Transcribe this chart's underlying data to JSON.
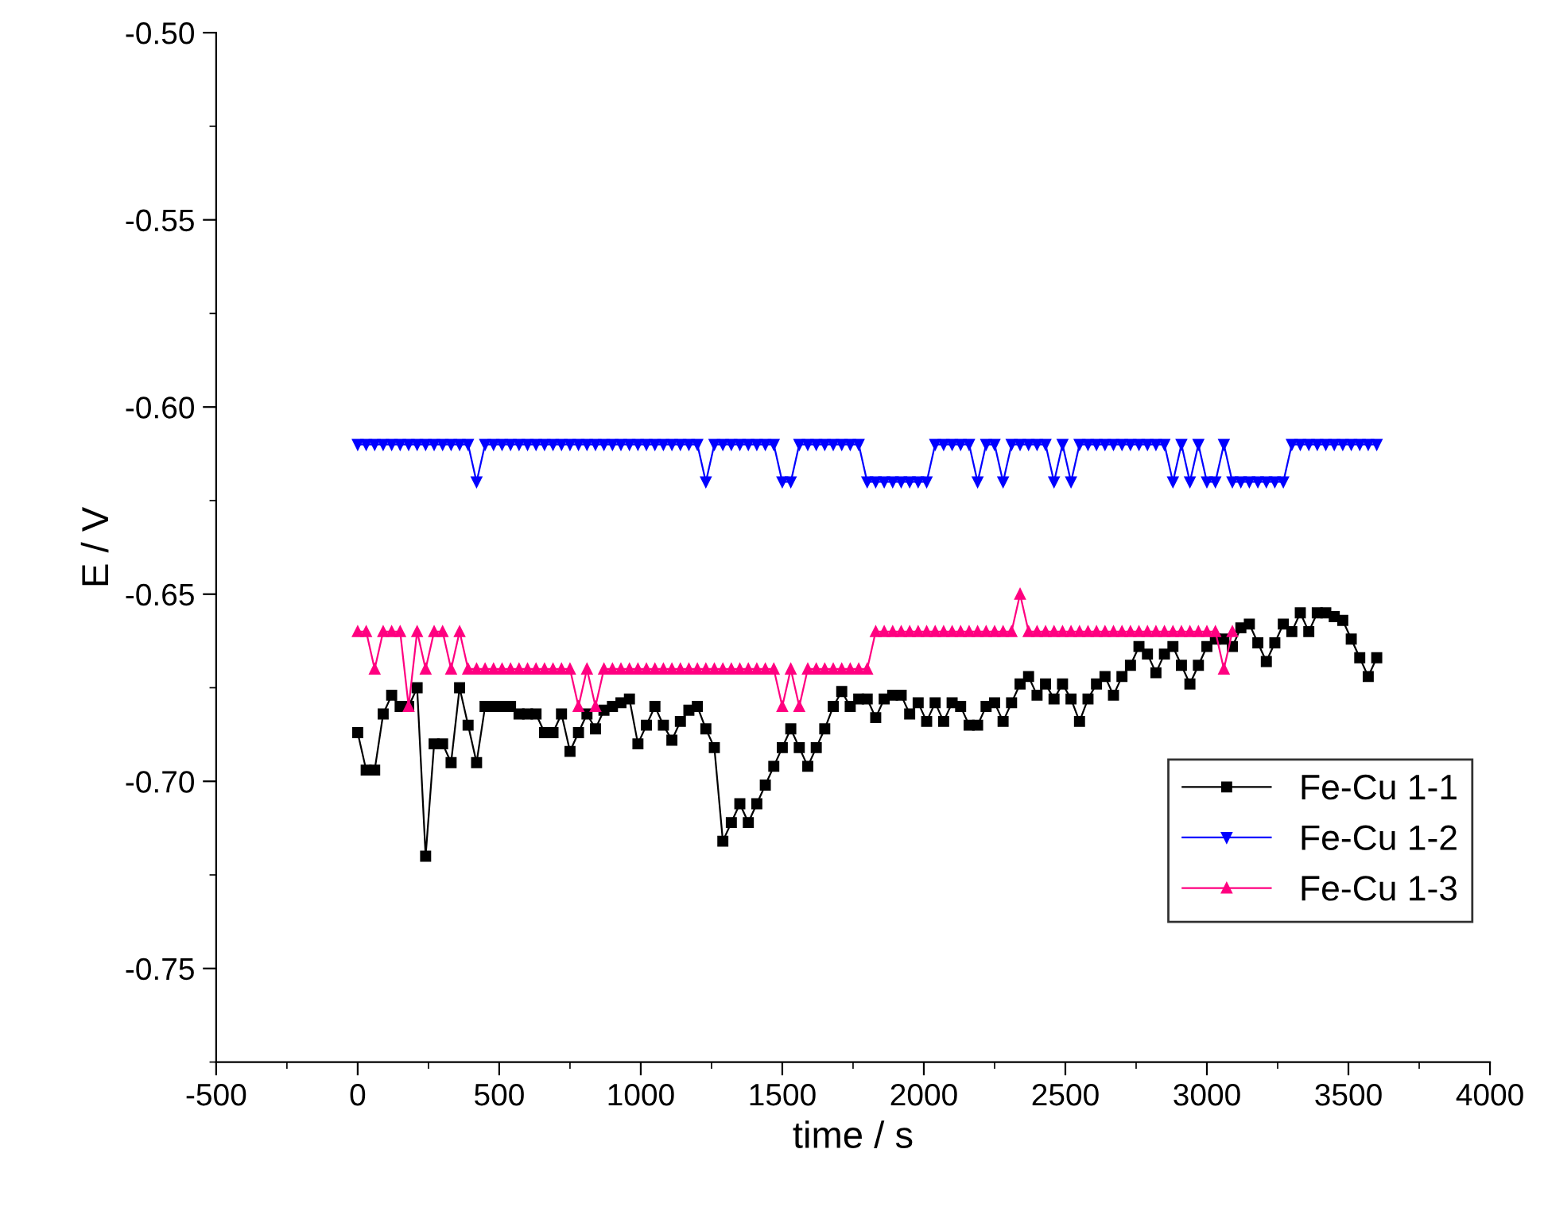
{
  "chart_data": {
    "type": "line",
    "xlabel": "time / s",
    "ylabel": "E / V",
    "xlim": [
      -500,
      4000
    ],
    "xticks": [
      -500,
      0,
      500,
      1000,
      1500,
      2000,
      2500,
      3000,
      3500,
      4000
    ],
    "ylim": [
      -0.775,
      -0.5
    ],
    "yticks": [
      {
        "value": -0.75,
        "label": "-0.75"
      },
      {
        "value": -0.7,
        "label": "-0.70"
      },
      {
        "value": -0.65,
        "label": "-0.65"
      },
      {
        "value": -0.6,
        "label": "-0.60"
      },
      {
        "value": -0.55,
        "label": "-0.55"
      },
      {
        "value": -0.5,
        "label": "-0.50"
      }
    ],
    "grid": false,
    "legend": "right",
    "line_style": "solid",
    "series": [
      {
        "name": "Fe-Cu 1-1",
        "color": "#000000",
        "marker": "square",
        "x": [
          0,
          30,
          60,
          90,
          120,
          150,
          180,
          210,
          240,
          270,
          300,
          330,
          360,
          390,
          420,
          450,
          480,
          510,
          540,
          570,
          600,
          630,
          660,
          690,
          720,
          750,
          780,
          810,
          840,
          870,
          900,
          930,
          960,
          990,
          1020,
          1050,
          1080,
          1110,
          1140,
          1170,
          1200,
          1230,
          1260,
          1290,
          1320,
          1350,
          1380,
          1410,
          1440,
          1470,
          1500,
          1530,
          1560,
          1590,
          1620,
          1650,
          1680,
          1710,
          1740,
          1770,
          1800,
          1830,
          1860,
          1890,
          1920,
          1950,
          1980,
          2010,
          2040,
          2070,
          2100,
          2130,
          2160,
          2190,
          2220,
          2250,
          2280,
          2310,
          2340,
          2370,
          2400,
          2430,
          2460,
          2490,
          2520,
          2550,
          2580,
          2610,
          2640,
          2670,
          2700,
          2730,
          2760,
          2790,
          2820,
          2850,
          2880,
          2910,
          2940,
          2970,
          3000,
          3030,
          3060,
          3090,
          3120,
          3150,
          3180,
          3210,
          3240,
          3270,
          3300,
          3330,
          3360,
          3390,
          3420,
          3450,
          3480,
          3510,
          3540,
          3570,
          3600
        ],
        "values": [
          -0.687,
          -0.697,
          -0.697,
          -0.682,
          -0.677,
          -0.68,
          -0.68,
          -0.675,
          -0.72,
          -0.69,
          -0.69,
          -0.695,
          -0.675,
          -0.685,
          -0.695,
          -0.68,
          -0.68,
          -0.68,
          -0.68,
          -0.682,
          -0.682,
          -0.682,
          -0.687,
          -0.687,
          -0.682,
          -0.692,
          -0.687,
          -0.682,
          -0.686,
          -0.681,
          -0.68,
          -0.679,
          -0.678,
          -0.69,
          -0.685,
          -0.68,
          -0.685,
          -0.689,
          -0.684,
          -0.681,
          -0.68,
          -0.686,
          -0.691,
          -0.716,
          -0.711,
          -0.706,
          -0.711,
          -0.706,
          -0.701,
          -0.696,
          -0.691,
          -0.686,
          -0.691,
          -0.696,
          -0.691,
          -0.686,
          -0.68,
          -0.676,
          -0.68,
          -0.678,
          -0.678,
          -0.683,
          -0.678,
          -0.677,
          -0.677,
          -0.682,
          -0.679,
          -0.684,
          -0.679,
          -0.684,
          -0.679,
          -0.68,
          -0.685,
          -0.685,
          -0.68,
          -0.679,
          -0.684,
          -0.679,
          -0.674,
          -0.672,
          -0.677,
          -0.674,
          -0.678,
          -0.674,
          -0.678,
          -0.684,
          -0.678,
          -0.674,
          -0.672,
          -0.677,
          -0.672,
          -0.669,
          -0.664,
          -0.666,
          -0.671,
          -0.666,
          -0.664,
          -0.669,
          -0.674,
          -0.669,
          -0.664,
          -0.662,
          -0.662,
          -0.664,
          -0.659,
          -0.658,
          -0.663,
          -0.668,
          -0.663,
          -0.658,
          -0.66,
          -0.655,
          -0.66,
          -0.655,
          -0.655,
          -0.656,
          -0.657,
          -0.662,
          -0.667,
          -0.672,
          -0.667
        ]
      },
      {
        "name": "Fe-Cu 1-2",
        "color": "#0000ff",
        "marker": "triangle_down",
        "x": [
          0,
          30,
          60,
          90,
          120,
          150,
          180,
          210,
          240,
          270,
          300,
          330,
          360,
          390,
          420,
          450,
          480,
          510,
          540,
          570,
          600,
          630,
          660,
          690,
          720,
          750,
          780,
          810,
          840,
          870,
          900,
          930,
          960,
          990,
          1020,
          1050,
          1080,
          1110,
          1140,
          1170,
          1200,
          1230,
          1260,
          1290,
          1320,
          1350,
          1380,
          1410,
          1440,
          1470,
          1500,
          1530,
          1560,
          1590,
          1620,
          1650,
          1680,
          1710,
          1740,
          1770,
          1800,
          1830,
          1860,
          1890,
          1920,
          1950,
          1980,
          2010,
          2040,
          2070,
          2100,
          2130,
          2160,
          2190,
          2220,
          2250,
          2280,
          2310,
          2340,
          2370,
          2400,
          2430,
          2460,
          2490,
          2520,
          2550,
          2580,
          2610,
          2640,
          2670,
          2700,
          2730,
          2760,
          2790,
          2820,
          2850,
          2880,
          2910,
          2940,
          2970,
          3000,
          3030,
          3060,
          3090,
          3120,
          3150,
          3180,
          3210,
          3240,
          3270,
          3300,
          3330,
          3360,
          3390,
          3420,
          3450,
          3480,
          3510,
          3540,
          3570,
          3600
        ],
        "values": [
          -0.61,
          -0.61,
          -0.61,
          -0.61,
          -0.61,
          -0.61,
          -0.61,
          -0.61,
          -0.61,
          -0.61,
          -0.61,
          -0.61,
          -0.61,
          -0.61,
          -0.62,
          -0.61,
          -0.61,
          -0.61,
          -0.61,
          -0.61,
          -0.61,
          -0.61,
          -0.61,
          -0.61,
          -0.61,
          -0.61,
          -0.61,
          -0.61,
          -0.61,
          -0.61,
          -0.61,
          -0.61,
          -0.61,
          -0.61,
          -0.61,
          -0.61,
          -0.61,
          -0.61,
          -0.61,
          -0.61,
          -0.61,
          -0.62,
          -0.61,
          -0.61,
          -0.61,
          -0.61,
          -0.61,
          -0.61,
          -0.61,
          -0.61,
          -0.62,
          -0.62,
          -0.61,
          -0.61,
          -0.61,
          -0.61,
          -0.61,
          -0.61,
          -0.61,
          -0.61,
          -0.62,
          -0.62,
          -0.62,
          -0.62,
          -0.62,
          -0.62,
          -0.62,
          -0.62,
          -0.61,
          -0.61,
          -0.61,
          -0.61,
          -0.61,
          -0.62,
          -0.61,
          -0.61,
          -0.62,
          -0.61,
          -0.61,
          -0.61,
          -0.61,
          -0.61,
          -0.62,
          -0.61,
          -0.62,
          -0.61,
          -0.61,
          -0.61,
          -0.61,
          -0.61,
          -0.61,
          -0.61,
          -0.61,
          -0.61,
          -0.61,
          -0.61,
          -0.62,
          -0.61,
          -0.62,
          -0.61,
          -0.62,
          -0.62,
          -0.61,
          -0.62,
          -0.62,
          -0.62,
          -0.62,
          -0.62,
          -0.62,
          -0.62,
          -0.61,
          -0.61,
          -0.61,
          -0.61,
          -0.61,
          -0.61,
          -0.61,
          -0.61,
          -0.61,
          -0.61,
          -0.61
        ]
      },
      {
        "name": "Fe-Cu 1-3",
        "color": "#ff0080",
        "marker": "triangle",
        "x": [
          0,
          30,
          60,
          90,
          120,
          150,
          180,
          210,
          240,
          270,
          300,
          330,
          360,
          390,
          420,
          450,
          480,
          510,
          540,
          570,
          600,
          630,
          660,
          690,
          720,
          750,
          780,
          810,
          840,
          870,
          900,
          930,
          960,
          990,
          1020,
          1050,
          1080,
          1110,
          1140,
          1170,
          1200,
          1230,
          1260,
          1290,
          1320,
          1350,
          1380,
          1410,
          1440,
          1470,
          1500,
          1530,
          1560,
          1590,
          1620,
          1650,
          1680,
          1710,
          1740,
          1770,
          1800,
          1830,
          1860,
          1890,
          1920,
          1950,
          1980,
          2010,
          2040,
          2070,
          2100,
          2130,
          2160,
          2190,
          2220,
          2250,
          2280,
          2310,
          2340,
          2370,
          2400,
          2430,
          2460,
          2490,
          2520,
          2550,
          2580,
          2610,
          2640,
          2670,
          2700,
          2730,
          2760,
          2790,
          2820,
          2850,
          2880,
          2910,
          2940,
          2970,
          3000,
          3030,
          3060,
          3090
        ],
        "values": [
          -0.66,
          -0.66,
          -0.67,
          -0.66,
          -0.66,
          -0.66,
          -0.68,
          -0.66,
          -0.67,
          -0.66,
          -0.66,
          -0.67,
          -0.66,
          -0.67,
          -0.67,
          -0.67,
          -0.67,
          -0.67,
          -0.67,
          -0.67,
          -0.67,
          -0.67,
          -0.67,
          -0.67,
          -0.67,
          -0.67,
          -0.68,
          -0.67,
          -0.68,
          -0.67,
          -0.67,
          -0.67,
          -0.67,
          -0.67,
          -0.67,
          -0.67,
          -0.67,
          -0.67,
          -0.67,
          -0.67,
          -0.67,
          -0.67,
          -0.67,
          -0.67,
          -0.67,
          -0.67,
          -0.67,
          -0.67,
          -0.67,
          -0.67,
          -0.68,
          -0.67,
          -0.68,
          -0.67,
          -0.67,
          -0.67,
          -0.67,
          -0.67,
          -0.67,
          -0.67,
          -0.67,
          -0.66,
          -0.66,
          -0.66,
          -0.66,
          -0.66,
          -0.66,
          -0.66,
          -0.66,
          -0.66,
          -0.66,
          -0.66,
          -0.66,
          -0.66,
          -0.66,
          -0.66,
          -0.66,
          -0.66,
          -0.65,
          -0.66,
          -0.66,
          -0.66,
          -0.66,
          -0.66,
          -0.66,
          -0.66,
          -0.66,
          -0.66,
          -0.66,
          -0.66,
          -0.66,
          -0.66,
          -0.66,
          -0.66,
          -0.66,
          -0.66,
          -0.66,
          -0.66,
          -0.66,
          -0.66,
          -0.66,
          -0.66,
          -0.67,
          -0.66
        ]
      }
    ]
  }
}
